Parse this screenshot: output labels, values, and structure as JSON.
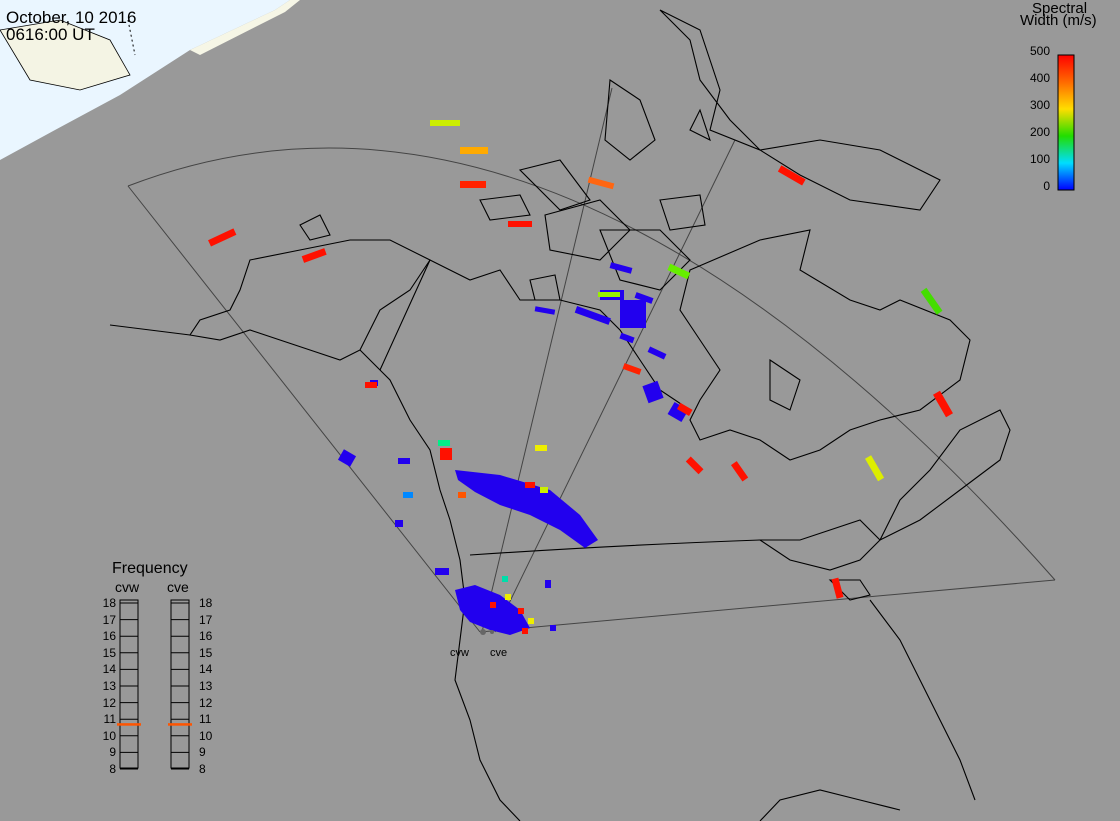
{
  "header": {
    "date": "October, 10 2016",
    "time": "0616:00 UT"
  },
  "colorbar": {
    "title_line1": "Spectral",
    "title_line2": "Width (m/s)",
    "ticks": [
      "500",
      "400",
      "300",
      "200",
      "100",
      "0"
    ],
    "colors": [
      "#ff0000",
      "#ff6a00",
      "#ffdd00",
      "#22dd00",
      "#00ddff",
      "#0000ff"
    ]
  },
  "frequency": {
    "title": "Frequency",
    "columns": [
      "cvw",
      "cve"
    ],
    "levels": [
      "18",
      "17",
      "16",
      "15",
      "14",
      "13",
      "12",
      "11",
      "10",
      "9",
      "8"
    ],
    "current_mhz": {
      "cvw": 10.7,
      "cve": 10.7
    },
    "marker_color": "#ff5500"
  },
  "stations": {
    "cvw": "cvw",
    "cve": "cve"
  },
  "colors": {
    "background": "#999999",
    "sunlit": "#eaf6ff",
    "coast": "#000000",
    "fov": "#333333",
    "ground_scatter_blue": "#2200ee"
  }
}
